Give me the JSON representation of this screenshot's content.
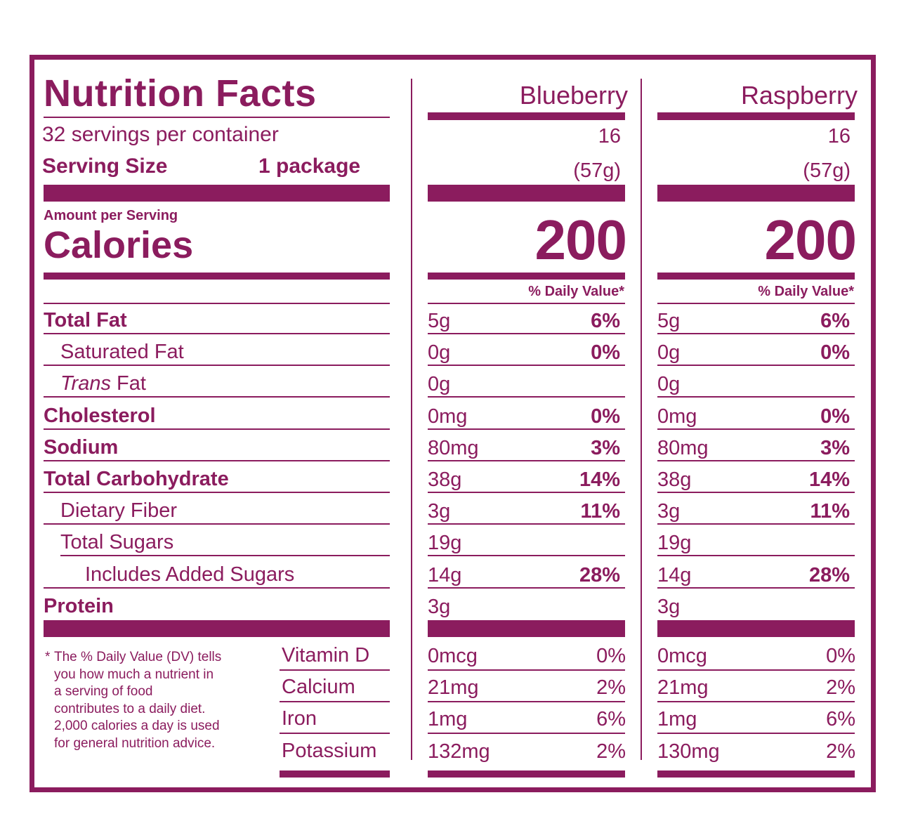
{
  "title": "Nutrition Facts",
  "servings_per_container": "32 servings per container",
  "serving_size_label": "Serving Size",
  "serving_size_value": "1 package",
  "amount_per_serving": "Amount per Serving",
  "calories_label": "Calories",
  "daily_value_header": "% Daily Value*",
  "columns": [
    {
      "name": "Blueberry",
      "servings": "16",
      "serving_weight": "(57g)",
      "calories": "200"
    },
    {
      "name": "Raspberry",
      "servings": "16",
      "serving_weight": "(57g)",
      "calories": "200"
    }
  ],
  "nutrients": [
    {
      "label": "Total Fat",
      "values": [
        {
          "amount": "5g",
          "dv": "6%"
        },
        {
          "amount": "5g",
          "dv": "6%"
        }
      ]
    },
    {
      "label": "Saturated Fat",
      "values": [
        {
          "amount": "0g",
          "dv": "0%"
        },
        {
          "amount": "0g",
          "dv": "0%"
        }
      ]
    },
    {
      "label_italic": "Trans",
      "label_rest": " Fat",
      "values": [
        {
          "amount": "0g",
          "dv": ""
        },
        {
          "amount": "0g",
          "dv": ""
        }
      ]
    },
    {
      "label": "Cholesterol",
      "values": [
        {
          "amount": "0mg",
          "dv": "0%"
        },
        {
          "amount": "0mg",
          "dv": "0%"
        }
      ]
    },
    {
      "label": "Sodium",
      "values": [
        {
          "amount": "80mg",
          "dv": "3%"
        },
        {
          "amount": "80mg",
          "dv": "3%"
        }
      ]
    },
    {
      "label": "Total Carbohydrate",
      "values": [
        {
          "amount": "38g",
          "dv": "14%"
        },
        {
          "amount": "38g",
          "dv": "14%"
        }
      ]
    },
    {
      "label": "Dietary Fiber",
      "values": [
        {
          "amount": "3g",
          "dv": "11%"
        },
        {
          "amount": "3g",
          "dv": "11%"
        }
      ]
    },
    {
      "label": "Total Sugars",
      "values": [
        {
          "amount": "19g",
          "dv": ""
        },
        {
          "amount": "19g",
          "dv": ""
        }
      ]
    },
    {
      "label": "Includes Added Sugars",
      "values": [
        {
          "amount": "14g",
          "dv": "28%"
        },
        {
          "amount": "14g",
          "dv": "28%"
        }
      ]
    },
    {
      "label": "Protein",
      "values": [
        {
          "amount": "3g",
          "dv": ""
        },
        {
          "amount": "3g",
          "dv": ""
        }
      ]
    }
  ],
  "vitamins": [
    {
      "label": "Vitamin D",
      "values": [
        {
          "amount": "0mcg",
          "dv": "0%"
        },
        {
          "amount": "0mcg",
          "dv": "0%"
        }
      ]
    },
    {
      "label": "Calcium",
      "values": [
        {
          "amount": "21mg",
          "dv": "2%"
        },
        {
          "amount": "21mg",
          "dv": "2%"
        }
      ]
    },
    {
      "label": "Iron",
      "values": [
        {
          "amount": "1mg",
          "dv": "6%"
        },
        {
          "amount": "1mg",
          "dv": "6%"
        }
      ]
    },
    {
      "label": "Potassium",
      "values": [
        {
          "amount": "132mg",
          "dv": "2%"
        },
        {
          "amount": "130mg",
          "dv": "2%"
        }
      ]
    }
  ],
  "footnote": {
    "star": "*",
    "lines": [
      "The % Daily Value (DV) tells",
      "you how much a nutrient in",
      "a serving of food",
      "contributes to a daily diet.",
      "2,000 calories a day is used",
      "for general nutrition advice."
    ]
  },
  "colors": {
    "primary": "#8b1c5e",
    "background": "#ffffff"
  }
}
